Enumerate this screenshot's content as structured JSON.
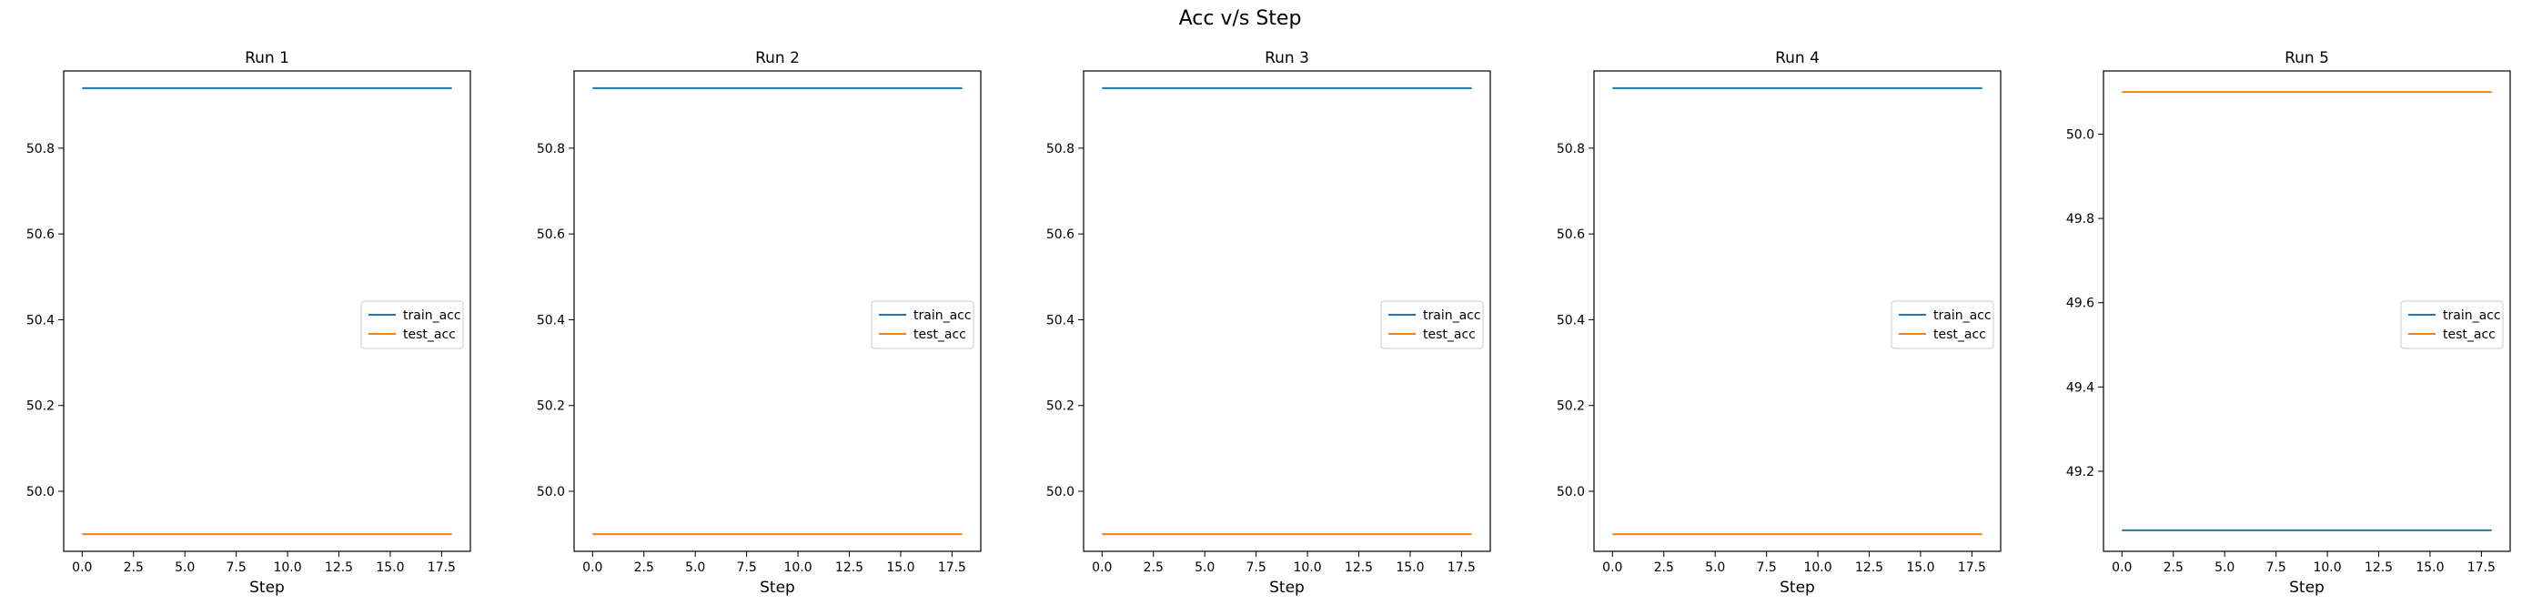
{
  "figure": {
    "suptitle": "Acc v/s Step"
  },
  "colors": {
    "train_acc": "#1f77b4",
    "test_acc": "#ff7f0e",
    "axes": "#000000",
    "legend_frame": "#cccccc"
  },
  "chart_data": [
    {
      "type": "line",
      "title": "Run 1",
      "xlabel": "Step",
      "ylabel": "",
      "grid": false,
      "legend_position": "center-right",
      "xlim": [
        -0.9,
        18.9
      ],
      "ylim": [
        49.86,
        50.98
      ],
      "x_ticks": [
        0.0,
        2.5,
        5.0,
        7.5,
        10.0,
        12.5,
        15.0,
        17.5
      ],
      "x_tick_labels": [
        "0.0",
        "2.5",
        "5.0",
        "7.5",
        "10.0",
        "12.5",
        "15.0",
        "17.5"
      ],
      "y_ticks": [
        50.0,
        50.2,
        50.4,
        50.6,
        50.8
      ],
      "y_tick_labels": [
        "50.0",
        "50.2",
        "50.4",
        "50.6",
        "50.8"
      ],
      "series": [
        {
          "name": "train_acc",
          "color": "#1f77b4",
          "x": [
            0,
            18
          ],
          "y": [
            50.94,
            50.94
          ]
        },
        {
          "name": "test_acc",
          "color": "#ff7f0e",
          "x": [
            0,
            18
          ],
          "y": [
            49.9,
            49.9
          ]
        }
      ]
    },
    {
      "type": "line",
      "title": "Run 2",
      "xlabel": "Step",
      "ylabel": "",
      "grid": false,
      "legend_position": "center-right",
      "xlim": [
        -0.9,
        18.9
      ],
      "ylim": [
        49.86,
        50.98
      ],
      "x_ticks": [
        0.0,
        2.5,
        5.0,
        7.5,
        10.0,
        12.5,
        15.0,
        17.5
      ],
      "x_tick_labels": [
        "0.0",
        "2.5",
        "5.0",
        "7.5",
        "10.0",
        "12.5",
        "15.0",
        "17.5"
      ],
      "y_ticks": [
        50.0,
        50.2,
        50.4,
        50.6,
        50.8
      ],
      "y_tick_labels": [
        "50.0",
        "50.2",
        "50.4",
        "50.6",
        "50.8"
      ],
      "series": [
        {
          "name": "train_acc",
          "color": "#1f77b4",
          "x": [
            0,
            18
          ],
          "y": [
            50.94,
            50.94
          ]
        },
        {
          "name": "test_acc",
          "color": "#ff7f0e",
          "x": [
            0,
            18
          ],
          "y": [
            49.9,
            49.9
          ]
        }
      ]
    },
    {
      "type": "line",
      "title": "Run 3",
      "xlabel": "Step",
      "ylabel": "",
      "grid": false,
      "legend_position": "center-right",
      "xlim": [
        -0.9,
        18.9
      ],
      "ylim": [
        49.86,
        50.98
      ],
      "x_ticks": [
        0.0,
        2.5,
        5.0,
        7.5,
        10.0,
        12.5,
        15.0,
        17.5
      ],
      "x_tick_labels": [
        "0.0",
        "2.5",
        "5.0",
        "7.5",
        "10.0",
        "12.5",
        "15.0",
        "17.5"
      ],
      "y_ticks": [
        50.0,
        50.2,
        50.4,
        50.6,
        50.8
      ],
      "y_tick_labels": [
        "50.0",
        "50.2",
        "50.4",
        "50.6",
        "50.8"
      ],
      "series": [
        {
          "name": "train_acc",
          "color": "#1f77b4",
          "x": [
            0,
            18
          ],
          "y": [
            50.94,
            50.94
          ]
        },
        {
          "name": "test_acc",
          "color": "#ff7f0e",
          "x": [
            0,
            18
          ],
          "y": [
            49.9,
            49.9
          ]
        }
      ]
    },
    {
      "type": "line",
      "title": "Run 4",
      "xlabel": "Step",
      "ylabel": "",
      "grid": false,
      "legend_position": "center-right",
      "xlim": [
        -0.9,
        18.9
      ],
      "ylim": [
        49.86,
        50.98
      ],
      "x_ticks": [
        0.0,
        2.5,
        5.0,
        7.5,
        10.0,
        12.5,
        15.0,
        17.5
      ],
      "x_tick_labels": [
        "0.0",
        "2.5",
        "5.0",
        "7.5",
        "10.0",
        "12.5",
        "15.0",
        "17.5"
      ],
      "y_ticks": [
        50.0,
        50.2,
        50.4,
        50.6,
        50.8
      ],
      "y_tick_labels": [
        "50.0",
        "50.2",
        "50.4",
        "50.6",
        "50.8"
      ],
      "series": [
        {
          "name": "train_acc",
          "color": "#1f77b4",
          "x": [
            0,
            18
          ],
          "y": [
            50.94,
            50.94
          ]
        },
        {
          "name": "test_acc",
          "color": "#ff7f0e",
          "x": [
            0,
            18
          ],
          "y": [
            49.9,
            49.9
          ]
        }
      ]
    },
    {
      "type": "line",
      "title": "Run 5",
      "xlabel": "Step",
      "ylabel": "",
      "grid": false,
      "legend_position": "center-right",
      "xlim": [
        -0.9,
        18.9
      ],
      "ylim": [
        49.01,
        50.15
      ],
      "x_ticks": [
        0.0,
        2.5,
        5.0,
        7.5,
        10.0,
        12.5,
        15.0,
        17.5
      ],
      "x_tick_labels": [
        "0.0",
        "2.5",
        "5.0",
        "7.5",
        "10.0",
        "12.5",
        "15.0",
        "17.5"
      ],
      "y_ticks": [
        49.2,
        49.4,
        49.6,
        49.8,
        50.0
      ],
      "y_tick_labels": [
        "49.2",
        "49.4",
        "49.6",
        "49.8",
        "50.0"
      ],
      "series": [
        {
          "name": "train_acc",
          "color": "#1f77b4",
          "x": [
            0,
            18
          ],
          "y": [
            49.06,
            49.06
          ]
        },
        {
          "name": "test_acc",
          "color": "#ff7f0e",
          "x": [
            0,
            18
          ],
          "y": [
            50.1,
            50.1
          ]
        }
      ]
    }
  ]
}
